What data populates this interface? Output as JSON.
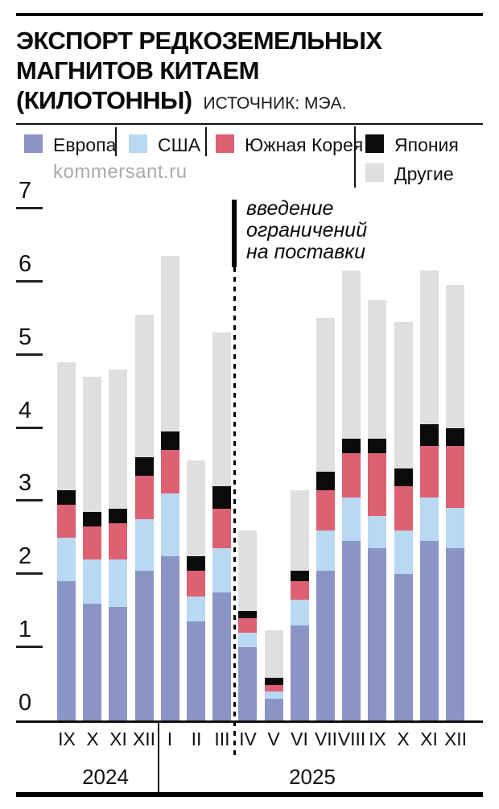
{
  "header": {
    "title_line1": "ЭКСПОРТ РЕДКОЗЕМЕЛЬНЫХ",
    "title_line2": "МАГНИТОВ КИТАЕМ",
    "title_line3": "(КИЛОТОННЫ)",
    "source": "ИСТОЧНИК: МЭА."
  },
  "watermark": "kommersant.ru",
  "legend": [
    {
      "label": "Европа",
      "color": "#8A94C6"
    },
    {
      "label": "США",
      "color": "#B9D8F1"
    },
    {
      "label": "Южная Корея",
      "color": "#DE6173"
    },
    {
      "label": "Япония",
      "color": "#0B0B0B"
    },
    {
      "label": "Другие",
      "color": "#DDDFE0"
    }
  ],
  "annotation": {
    "lines": [
      "введение",
      "ограничений",
      "на поставки"
    ]
  },
  "chart_data": {
    "type": "bar",
    "stacked": true,
    "title": "Экспорт редкоземельных магнитов Китаем (килотонны)",
    "xlabel": "",
    "ylabel": "килотонны",
    "ylim": [
      0,
      7
    ],
    "yticks": [
      0,
      1,
      2,
      3,
      4,
      5,
      6,
      7
    ],
    "grid": false,
    "legend_position": "top",
    "categories": [
      "IX",
      "X",
      "XI",
      "XII",
      "I",
      "II",
      "III",
      "IV",
      "V",
      "VI",
      "VII",
      "VIII",
      "IX",
      "X",
      "XI",
      "XII"
    ],
    "year_groups": [
      {
        "label": "2024",
        "span": 4
      },
      {
        "label": "2025",
        "span": 12
      }
    ],
    "annotation_text": "введение ограничений на поставки",
    "annotation_between_categories": [
      6,
      7
    ],
    "series": [
      {
        "name": "Европа",
        "key": "europe",
        "color": "#8A94C6",
        "values": [
          1.9,
          1.6,
          1.55,
          2.05,
          2.25,
          1.35,
          1.75,
          1.0,
          0.3,
          1.3,
          2.05,
          2.45,
          2.35,
          2.0,
          2.45,
          2.35
        ]
      },
      {
        "name": "США",
        "key": "usa",
        "color": "#B9D8F1",
        "values": [
          0.6,
          0.6,
          0.65,
          0.7,
          0.85,
          0.35,
          0.6,
          0.2,
          0.1,
          0.35,
          0.55,
          0.6,
          0.45,
          0.6,
          0.6,
          0.55
        ]
      },
      {
        "name": "Южная Корея",
        "key": "south-korea",
        "color": "#DE6173",
        "values": [
          0.45,
          0.45,
          0.5,
          0.6,
          0.6,
          0.35,
          0.55,
          0.2,
          0.08,
          0.25,
          0.55,
          0.6,
          0.85,
          0.6,
          0.7,
          0.85
        ]
      },
      {
        "name": "Япония",
        "key": "japan",
        "color": "#0B0B0B",
        "values": [
          0.2,
          0.2,
          0.2,
          0.25,
          0.25,
          0.2,
          0.3,
          0.1,
          0.1,
          0.15,
          0.25,
          0.2,
          0.2,
          0.25,
          0.3,
          0.25
        ]
      },
      {
        "name": "Другие",
        "key": "others",
        "color": "#DDDFE0",
        "values": [
          1.75,
          1.85,
          1.9,
          1.95,
          2.4,
          1.3,
          2.1,
          1.1,
          0.65,
          1.1,
          2.1,
          2.3,
          1.9,
          2.0,
          2.1,
          1.95
        ]
      }
    ]
  }
}
